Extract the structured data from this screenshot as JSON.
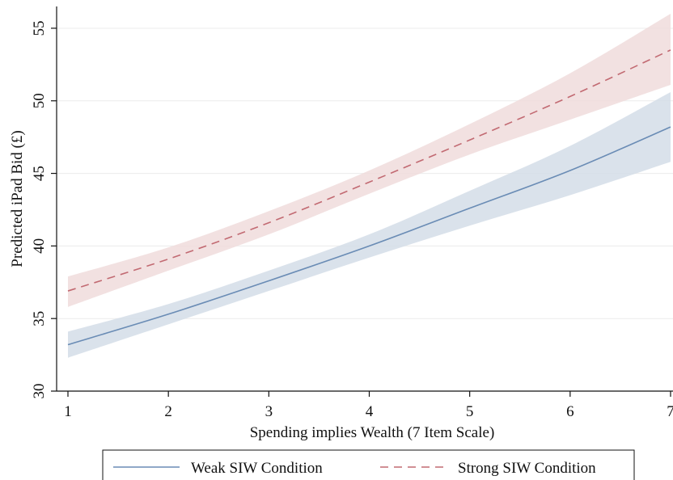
{
  "chart_data": {
    "type": "line",
    "title": "",
    "xlabel": "Spending implies Wealth (7 Item Scale)",
    "ylabel": "Predicted iPad Bid (£)",
    "xlim": [
      1,
      7
    ],
    "ylim": [
      30,
      56.5
    ],
    "xticks": [
      1,
      2,
      3,
      4,
      5,
      6,
      7
    ],
    "yticks": [
      30,
      35,
      40,
      45,
      50,
      55
    ],
    "grid": "horizontal",
    "legend_position": "bottom",
    "x": [
      1,
      2,
      3,
      4,
      5,
      6,
      7
    ],
    "series": [
      {
        "name": "Weak SIW Condition",
        "color": "#6a8cb5",
        "band_color": "#d4dde8",
        "line_style": "solid",
        "values": [
          33.2,
          35.3,
          37.6,
          40.0,
          42.6,
          45.2,
          48.2
        ],
        "lower": [
          32.3,
          34.6,
          36.9,
          39.2,
          41.4,
          43.5,
          45.8
        ],
        "upper": [
          34.1,
          36.0,
          38.3,
          40.8,
          43.8,
          46.9,
          50.6
        ]
      },
      {
        "name": "Strong SIW Condition",
        "color": "#c26a72",
        "band_color": "#f0dcdc",
        "line_style": "dashed",
        "values": [
          36.9,
          39.1,
          41.6,
          44.4,
          47.3,
          50.3,
          53.5
        ],
        "lower": [
          35.8,
          38.3,
          40.8,
          43.6,
          46.3,
          48.7,
          51.1
        ],
        "upper": [
          37.9,
          39.9,
          42.4,
          45.2,
          48.4,
          51.9,
          56.0
        ]
      }
    ]
  }
}
